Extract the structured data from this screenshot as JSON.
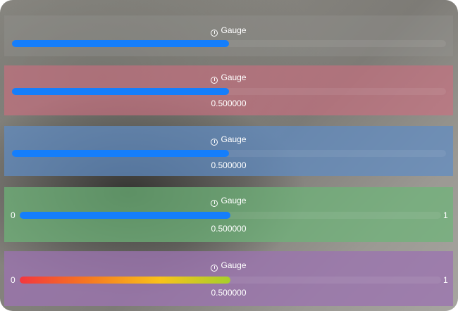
{
  "gauges": [
    {
      "title": "Gauge",
      "value": 0.5,
      "value_label": "",
      "min_label": "",
      "max_label": "",
      "tint": "#969692",
      "fill": "#157efb"
    },
    {
      "title": "Gauge",
      "value": 0.5,
      "value_label": "0.500000",
      "min_label": "",
      "max_label": "",
      "tint": "#cd6e80",
      "fill": "#157efb"
    },
    {
      "title": "Gauge",
      "value": 0.5,
      "value_label": "0.500000",
      "min_label": "",
      "max_label": "",
      "tint": "#5f8cc3",
      "fill": "#157efb"
    },
    {
      "title": "Gauge",
      "value": 0.5,
      "value_label": "0.500000",
      "min_label": "0",
      "max_label": "1",
      "tint": "#6eb478",
      "fill": "#157efb"
    },
    {
      "title": "Gauge",
      "value": 0.5,
      "value_label": "0.500000",
      "min_label": "0",
      "max_label": "1",
      "tint": "#9b73af",
      "fill_gradient": [
        "#f3373f",
        "#f67a20",
        "#f9c21a",
        "#a6cf2c"
      ]
    }
  ]
}
